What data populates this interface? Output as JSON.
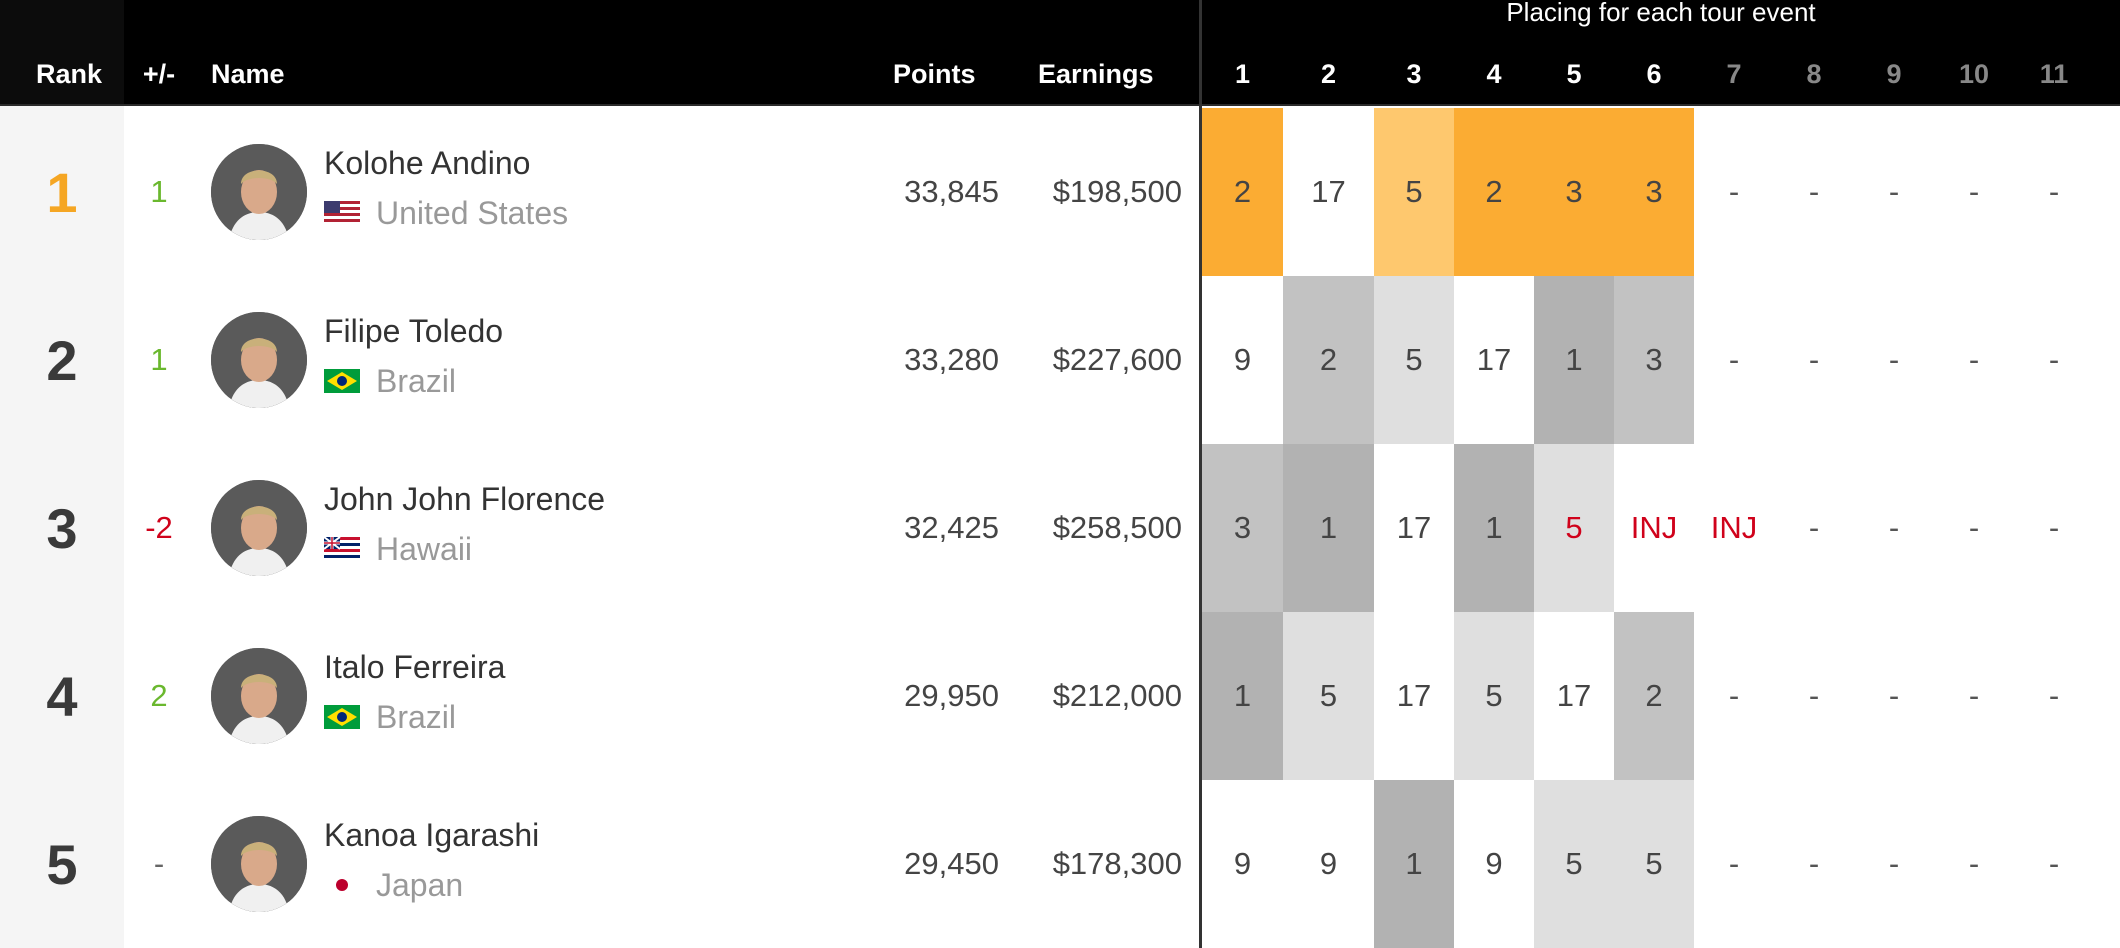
{
  "header": {
    "rank": "Rank",
    "change": "+/-",
    "name": "Name",
    "points": "Points",
    "earnings": "Earnings",
    "events_super": "Placing for each tour event",
    "events": [
      "1",
      "2",
      "3",
      "4",
      "5",
      "6",
      "7",
      "8",
      "9",
      "10",
      "11"
    ]
  },
  "colors": {
    "gold_dark": "#fbac33",
    "gold_light": "#fec86e",
    "grey_dark": "#b2b2b2",
    "grey_mid": "#c2c2c2",
    "grey_light": "#dfdfdf",
    "change_up": "#6ab82e",
    "change_down": "#d0021b",
    "rank_one": "#f5a623"
  },
  "rows": [
    {
      "rank": "1",
      "change": "1",
      "change_dir": "up",
      "name": "Kolohe Andino",
      "country": "United States",
      "flag": "usa-flag-icon",
      "avatar": "surfer-avatar",
      "points": "33,845",
      "earnings": "$198,500",
      "placings": [
        "2",
        "17",
        "5",
        "2",
        "3",
        "3",
        "-",
        "-",
        "-",
        "-",
        "-"
      ],
      "shades": [
        "gold_dark",
        "none",
        "gold_light",
        "gold_dark",
        "gold_dark",
        "gold_dark",
        "none",
        "none",
        "none",
        "none",
        "none"
      ]
    },
    {
      "rank": "2",
      "change": "1",
      "change_dir": "up",
      "name": "Filipe Toledo",
      "country": "Brazil",
      "flag": "brazil-flag-icon",
      "avatar": "surfer-avatar",
      "points": "33,280",
      "earnings": "$227,600",
      "placings": [
        "9",
        "2",
        "5",
        "17",
        "1",
        "3",
        "-",
        "-",
        "-",
        "-",
        "-"
      ],
      "shades": [
        "none",
        "grey_mid",
        "grey_light",
        "none",
        "grey_dark",
        "grey_mid",
        "none",
        "none",
        "none",
        "none",
        "none"
      ]
    },
    {
      "rank": "3",
      "change": "-2",
      "change_dir": "down",
      "name": "John John Florence",
      "country": "Hawaii",
      "flag": "hawaii-flag-icon",
      "avatar": "surfer-avatar",
      "points": "32,425",
      "earnings": "$258,500",
      "placings": [
        "3",
        "1",
        "17",
        "1",
        "5",
        "INJ",
        "INJ",
        "-",
        "-",
        "-",
        "-"
      ],
      "shades": [
        "grey_mid",
        "grey_dark",
        "none",
        "grey_dark",
        "grey_light",
        "none",
        "none",
        "none",
        "none",
        "none",
        "none"
      ],
      "red_placings": [
        4,
        5,
        6
      ]
    },
    {
      "rank": "4",
      "change": "2",
      "change_dir": "up",
      "name": "Italo Ferreira",
      "country": "Brazil",
      "flag": "brazil-flag-icon",
      "avatar": "surfer-avatar",
      "points": "29,950",
      "earnings": "$212,000",
      "placings": [
        "1",
        "5",
        "17",
        "5",
        "17",
        "2",
        "-",
        "-",
        "-",
        "-",
        "-"
      ],
      "shades": [
        "grey_dark",
        "grey_light",
        "none",
        "grey_light",
        "none",
        "grey_mid",
        "none",
        "none",
        "none",
        "none",
        "none"
      ]
    },
    {
      "rank": "5",
      "change": "-",
      "change_dir": "none",
      "name": "Kanoa Igarashi",
      "country": "Japan",
      "flag": "japan-flag-icon",
      "avatar": "surfer-avatar",
      "points": "29,450",
      "earnings": "$178,300",
      "placings": [
        "9",
        "9",
        "1",
        "9",
        "5",
        "5",
        "-",
        "-",
        "-",
        "-",
        "-"
      ],
      "shades": [
        "none",
        "none",
        "grey_dark",
        "none",
        "grey_light",
        "grey_light",
        "none",
        "none",
        "none",
        "none",
        "none"
      ]
    }
  ]
}
